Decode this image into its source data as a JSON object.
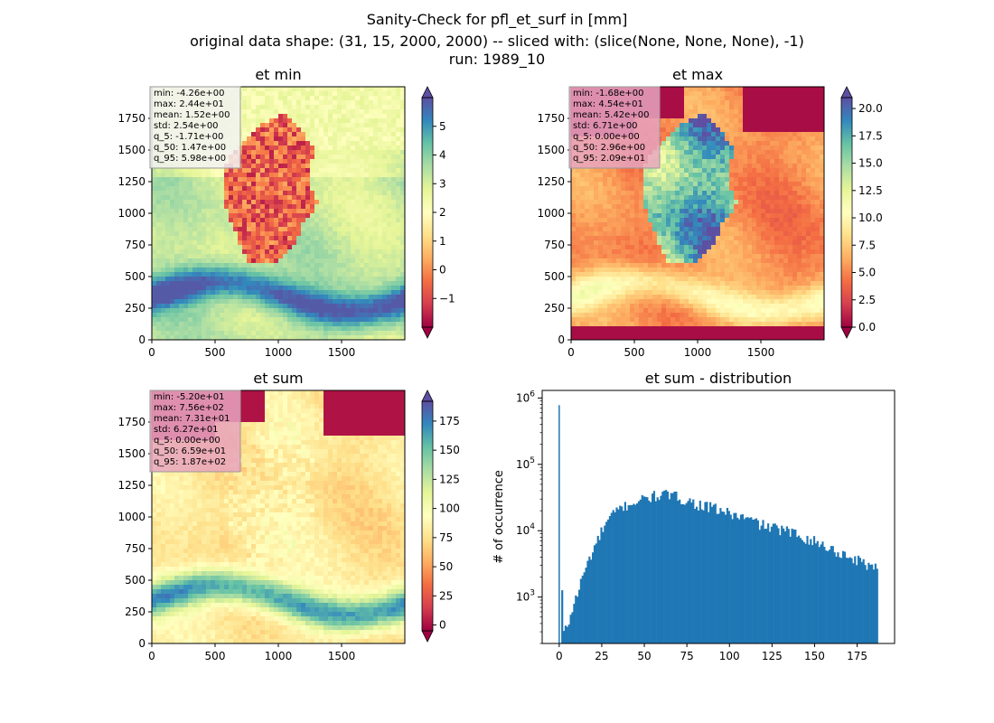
{
  "title_lines": [
    "Sanity-Check for pfl_et_surf in [mm]",
    "original data shape: (31, 15, 2000, 2000) -- sliced with: (slice(None, None, None), -1)",
    "run: 1989_10"
  ],
  "colors": {
    "spectral": [
      "#9e0142",
      "#d53e4f",
      "#f46d43",
      "#fdae61",
      "#fee08b",
      "#ffffbf",
      "#e6f598",
      "#abdda4",
      "#66c2a5",
      "#3288bd",
      "#5e4fa2"
    ],
    "bar": "#1f77b4",
    "stats_box_light": "#f2f2f2",
    "stats_box_pink": "#e8a6bf"
  },
  "chart_data": [
    {
      "type": "heatmap",
      "title": "et min",
      "xlim": [
        0,
        2000
      ],
      "ylim": [
        0,
        2000
      ],
      "xticks": [
        "0",
        "500",
        "1000",
        "1500"
      ],
      "yticks": [
        "0",
        "250",
        "500",
        "750",
        "1000",
        "1250",
        "1500",
        "1750"
      ],
      "colorbar": {
        "vmin": -2,
        "vmax": 6,
        "extend": "both",
        "ticks": [
          "−1",
          "0",
          "1",
          "2",
          "3",
          "4",
          "5"
        ]
      },
      "stats": [
        "min: -4.26e+00",
        "max: 2.44e+01",
        "mean: 1.52e+00",
        "std: 2.54e+00",
        "q_5: -1.71e+00",
        "q_50: 1.47e+00",
        "q_95: 5.98e+00"
      ]
    },
    {
      "type": "heatmap",
      "title": "et max",
      "xlim": [
        0,
        2000
      ],
      "ylim": [
        0,
        2000
      ],
      "xticks": [
        "0",
        "500",
        "1000",
        "1500"
      ],
      "yticks": [
        "0",
        "250",
        "500",
        "750",
        "1000",
        "1250",
        "1500",
        "1750"
      ],
      "colorbar": {
        "vmin": 0,
        "vmax": 21,
        "extend": "both",
        "ticks": [
          "0.0",
          "2.5",
          "5.0",
          "7.5",
          "10.0",
          "12.5",
          "15.0",
          "17.5",
          "20.0"
        ]
      },
      "stats": [
        "min: -1.68e+00",
        "max: 4.54e+01",
        "mean: 5.42e+00",
        "std: 6.71e+00",
        "q_5: 0.00e+00",
        "q_50: 2.96e+00",
        "q_95: 2.09e+01"
      ]
    },
    {
      "type": "heatmap",
      "title": "et sum",
      "xlim": [
        0,
        2000
      ],
      "ylim": [
        0,
        2000
      ],
      "xticks": [
        "0",
        "500",
        "1000",
        "1500"
      ],
      "yticks": [
        "0",
        "250",
        "500",
        "750",
        "1000",
        "1250",
        "1500",
        "1750"
      ],
      "colorbar": {
        "vmin": -5,
        "vmax": 192,
        "extend": "both",
        "ticks": [
          "0",
          "25",
          "50",
          "75",
          "100",
          "125",
          "150",
          "175"
        ]
      },
      "stats": [
        "min: -5.20e+01",
        "max: 7.56e+02",
        "mean: 7.31e+01",
        "std: 6.27e+01",
        "q_5: 0.00e+00",
        "q_50: 6.59e+01",
        "q_95: 1.87e+02"
      ]
    },
    {
      "type": "bar",
      "title": "et sum - distribution",
      "ylabel": "# of occurrence",
      "yscale": "log",
      "xlim": [
        -10,
        197
      ],
      "ylim": [
        200,
        1300000
      ],
      "xticks": [
        "0",
        "25",
        "50",
        "75",
        "100",
        "125",
        "150",
        "175"
      ],
      "yticks": [
        "10^3",
        "10^4",
        "10^5",
        "10^6"
      ],
      "hist": {
        "x": [
          0,
          1.5,
          3,
          4.5,
          6,
          7.5,
          10,
          15,
          20,
          25,
          30,
          35,
          40,
          45,
          50,
          55,
          60,
          65,
          70,
          75,
          80,
          85,
          90,
          95,
          100,
          105,
          110,
          115,
          120,
          125,
          130,
          135,
          140,
          145,
          150,
          155,
          160,
          165,
          170,
          175,
          180,
          185,
          187
        ],
        "y": [
          780000,
          250,
          320,
          380,
          500,
          700,
          1100,
          2800,
          5500,
          10500,
          16500,
          21500,
          25000,
          27500,
          30500,
          33000,
          35000,
          34500,
          31500,
          28500,
          25500,
          23500,
          22000,
          20000,
          18000,
          16500,
          15000,
          13500,
          12000,
          11000,
          10500,
          9500,
          8800,
          7800,
          6800,
          6000,
          5200,
          4600,
          4000,
          3600,
          3200,
          2900,
          3500
        ]
      }
    }
  ]
}
